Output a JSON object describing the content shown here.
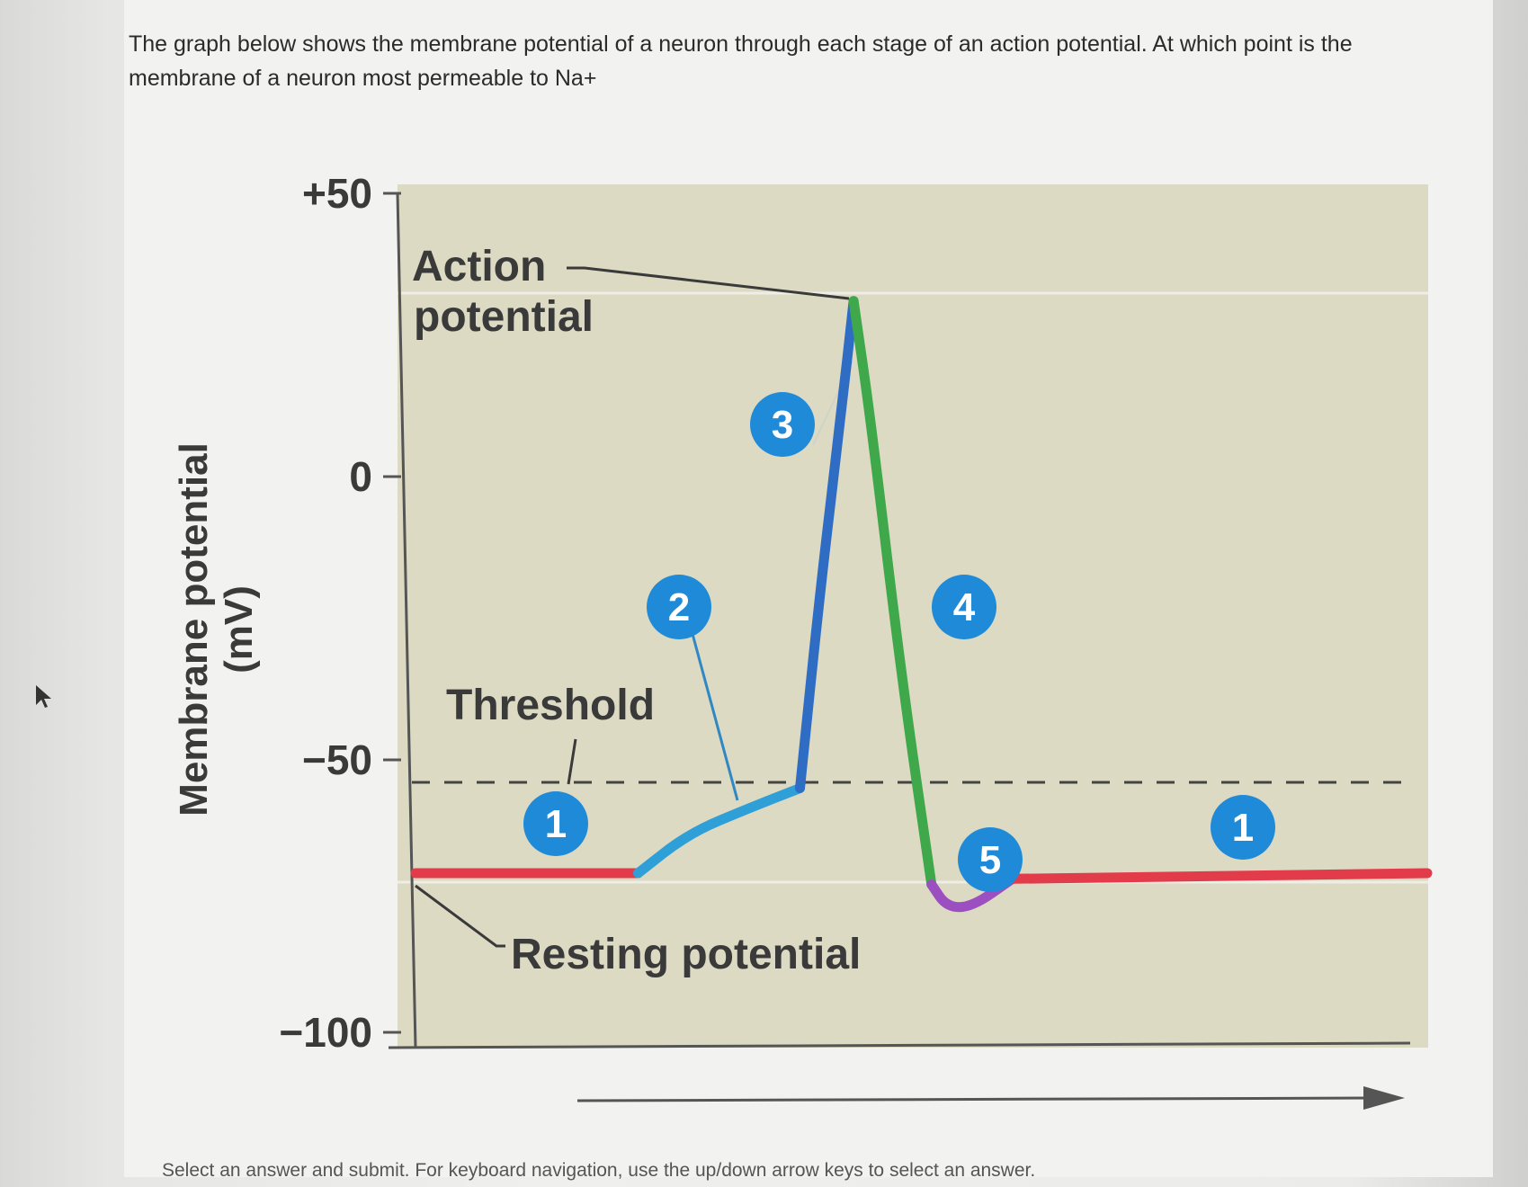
{
  "question": {
    "text": "The graph below shows the membrane potential of a neuron through each stage of an action potential. At which point is the membrane of a neuron most permeable to Na+"
  },
  "footer": {
    "text": "Select an answer and submit. For keyboard navigation, use the up/down arrow keys to select an answer."
  },
  "chart_data": {
    "type": "line",
    "ylabel": "Membrane potential",
    "ylabel_unit": "(mV)",
    "yticks": [
      "+50",
      "0",
      "−50",
      "−100"
    ],
    "ytick_values": [
      50,
      0,
      -50,
      -100
    ],
    "ylim": [
      -100,
      50
    ],
    "threshold_mv": -55,
    "annotations": {
      "action_potential": [
        "Action",
        "potential"
      ],
      "threshold": "Threshold",
      "resting": "Resting potential"
    },
    "stages": [
      "1",
      "2",
      "3",
      "4",
      "5",
      "1"
    ],
    "series": [
      {
        "color": "#e23b4a",
        "points": [
          [
            0,
            -70
          ],
          [
            22,
            -70
          ]
        ]
      },
      {
        "color": "#2f9fd8",
        "points": [
          [
            22,
            -70
          ],
          [
            27,
            -63
          ],
          [
            33,
            -58.5
          ],
          [
            38,
            -55
          ]
        ]
      },
      {
        "color": "#2f6cc4",
        "points": [
          [
            38,
            -55
          ],
          [
            40,
            -20
          ],
          [
            42,
            10
          ],
          [
            43.3,
            31
          ]
        ]
      },
      {
        "color": "#3ea84a",
        "points": [
          [
            43.3,
            31
          ],
          [
            45,
            10
          ],
          [
            48,
            -35
          ],
          [
            51,
            -72
          ]
        ]
      },
      {
        "color": "#9b4fc0",
        "points": [
          [
            51,
            -72
          ],
          [
            52.5,
            -76
          ],
          [
            55,
            -76
          ],
          [
            59,
            -71
          ]
        ]
      },
      {
        "color": "#e23b4a",
        "points": [
          [
            59,
            -71
          ],
          [
            100,
            -70
          ]
        ]
      }
    ],
    "colors": {
      "plot_background": "#dcdac3",
      "badge": "#1f8ad8",
      "resting": "#e23b4a",
      "depolarizing": "#2f9fd8",
      "rising": "#2f6cc4",
      "falling": "#3ea84a",
      "undershoot": "#9b4fc0"
    }
  }
}
